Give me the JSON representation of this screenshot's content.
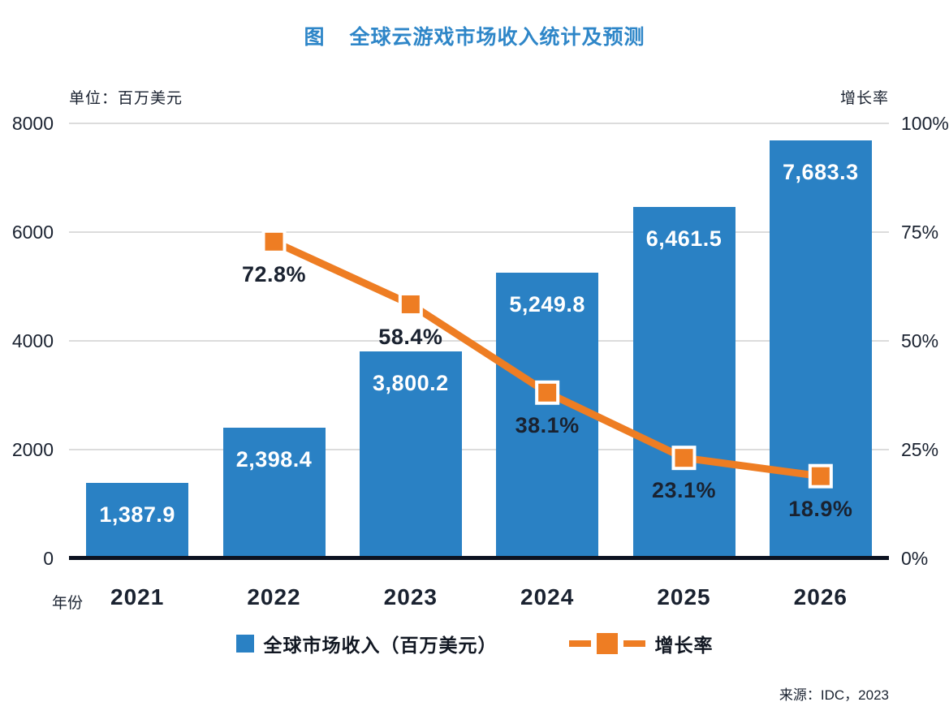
{
  "title": {
    "prefix": "图",
    "text": "全球云游戏市场收入统计及预测"
  },
  "axis_labels": {
    "left_unit": "单位：百万美元",
    "right_unit": "增长率",
    "x_label": "年份"
  },
  "legend": {
    "revenue_label": "全球市场收入（百万美元）",
    "growth_label": "增长率"
  },
  "source": "来源：IDC，2023",
  "colors": {
    "bar": "#2A81C4",
    "line": "#EE7D23",
    "title": "#2E86C8",
    "text_dark": "#1A2230",
    "grid": "#DCDCDC",
    "axis": "#0C1220",
    "bar_label": "#FFFFFF",
    "marker_border": "#FFFFFF"
  },
  "chart_data": {
    "type": "bar",
    "title": "图 全球云游戏市场收入统计及预测",
    "categories": [
      "2021",
      "2022",
      "2023",
      "2024",
      "2025",
      "2026"
    ],
    "series": [
      {
        "name": "全球市场收入（百万美元）",
        "type": "bar",
        "axis": "left",
        "values": [
          1387.9,
          2398.4,
          3800.2,
          5249.8,
          6461.5,
          7683.3
        ],
        "labels": [
          "1,387.9",
          "2,398.4",
          "3,800.2",
          "5,249.8",
          "6,461.5",
          "7,683.3"
        ]
      },
      {
        "name": "增长率",
        "type": "line",
        "axis": "right",
        "values": [
          null,
          72.8,
          58.4,
          38.1,
          23.1,
          18.9
        ],
        "labels": [
          null,
          "72.8%",
          "58.4%",
          "38.1%",
          "23.1%",
          "18.9%"
        ]
      }
    ],
    "left_axis": {
      "min": 0,
      "max": 8000,
      "ticks": [
        "0",
        "2000",
        "4000",
        "6000",
        "8000"
      ],
      "label": "单位：百万美元"
    },
    "right_axis": {
      "min": 0,
      "max": 100,
      "ticks": [
        "0%",
        "25%",
        "50%",
        "75%",
        "100%"
      ],
      "label": "增长率"
    },
    "grid": true,
    "legend_position": "bottom"
  }
}
